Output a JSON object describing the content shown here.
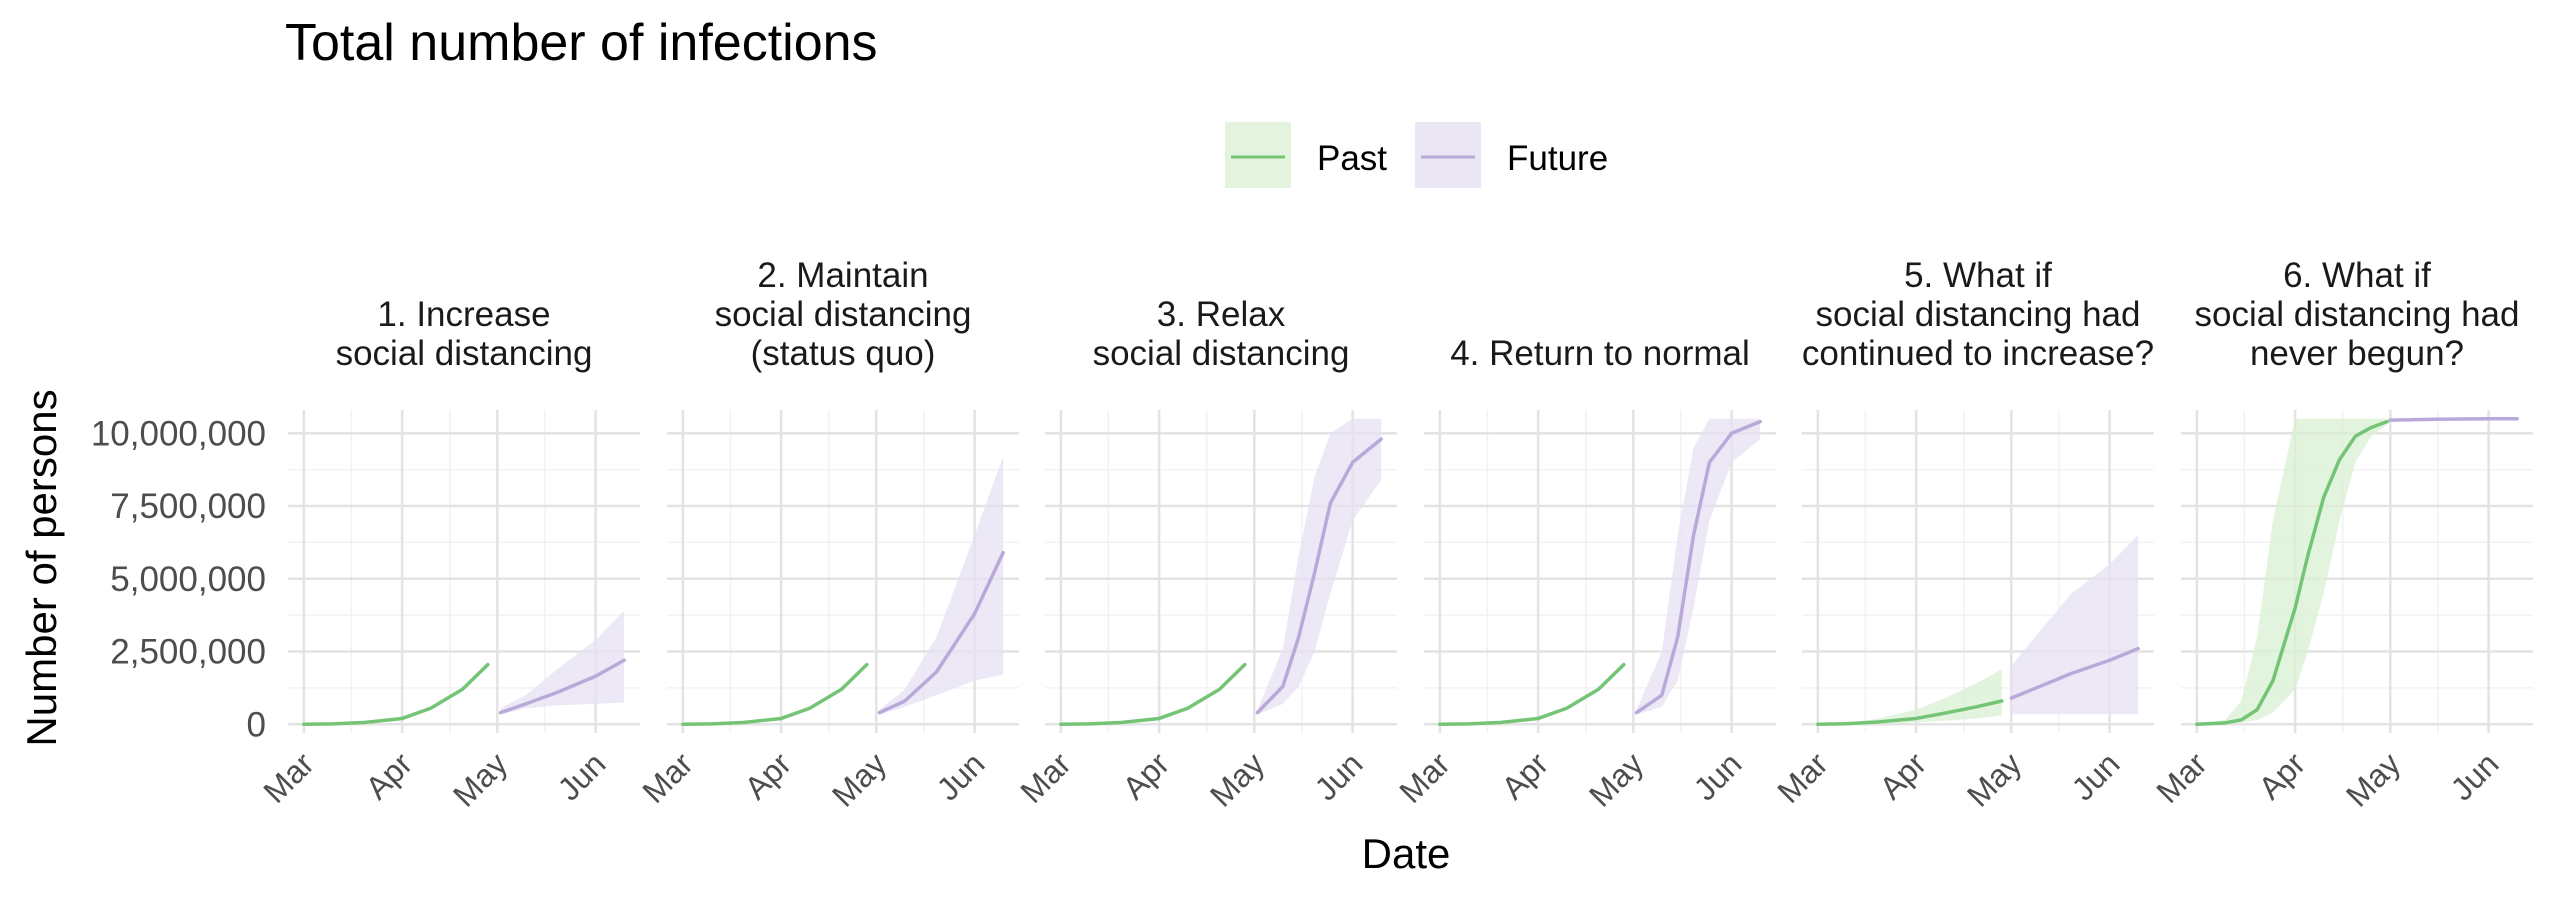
{
  "chart_data": {
    "type": "line",
    "title": "Total number of infections",
    "xlabel": "Date",
    "ylabel": "Number of persons",
    "ylim": [
      -300000,
      10800000
    ],
    "xlim": [
      "2020-02-25",
      "2020-06-15"
    ],
    "y_ticks": [
      {
        "value": 0,
        "label": "0"
      },
      {
        "value": 2500000,
        "label": "2,500,000"
      },
      {
        "value": 5000000,
        "label": "5,000,000"
      },
      {
        "value": 7500000,
        "label": "7,500,000"
      },
      {
        "value": 10000000,
        "label": "10,000,000"
      }
    ],
    "x_ticks": [
      {
        "date": "2020-03-01",
        "label": "Mar"
      },
      {
        "date": "2020-04-01",
        "label": "Apr"
      },
      {
        "date": "2020-05-01",
        "label": "May"
      },
      {
        "date": "2020-06-01",
        "label": "Jun"
      }
    ],
    "grid": true,
    "legend": {
      "position": "top",
      "entries": [
        {
          "name": "Past",
          "color": "#74c476",
          "fill": "#d9f0d3"
        },
        {
          "name": "Future",
          "color": "#b8a9d9",
          "fill": "#e6e0f3"
        }
      ]
    },
    "panels": [
      {
        "strip": [
          "1. Increase",
          "social distancing"
        ],
        "past": {
          "x": [
            "2020-03-01",
            "2020-03-10",
            "2020-03-20",
            "2020-04-01",
            "2020-04-10",
            "2020-04-20",
            "2020-04-28"
          ],
          "y": [
            0,
            15000,
            60000,
            200000,
            550000,
            1200000,
            2050000
          ]
        },
        "future": {
          "x": [
            "2020-05-02",
            "2020-05-10",
            "2020-05-20",
            "2020-06-01",
            "2020-06-10"
          ],
          "y": [
            400000,
            700000,
            1100000,
            1650000,
            2200000
          ],
          "lower": [
            330000,
            550000,
            650000,
            700000,
            750000
          ],
          "upper": [
            550000,
            1000000,
            1900000,
            2900000,
            3900000
          ]
        }
      },
      {
        "strip": [
          "2. Maintain",
          "social distancing",
          "(status quo)"
        ],
        "past": {
          "x": [
            "2020-03-01",
            "2020-03-10",
            "2020-03-20",
            "2020-04-01",
            "2020-04-10",
            "2020-04-20",
            "2020-04-28"
          ],
          "y": [
            0,
            15000,
            60000,
            200000,
            550000,
            1200000,
            2050000
          ]
        },
        "future": {
          "x": [
            "2020-05-02",
            "2020-05-10",
            "2020-05-20",
            "2020-06-01",
            "2020-06-10"
          ],
          "y": [
            400000,
            800000,
            1800000,
            3800000,
            5900000
          ],
          "lower": [
            330000,
            600000,
            1000000,
            1500000,
            1700000
          ],
          "upper": [
            500000,
            1200000,
            3000000,
            6500000,
            9200000
          ]
        }
      },
      {
        "strip": [
          "3. Relax",
          "social distancing"
        ],
        "past": {
          "x": [
            "2020-03-01",
            "2020-03-10",
            "2020-03-20",
            "2020-04-01",
            "2020-04-10",
            "2020-04-20",
            "2020-04-28"
          ],
          "y": [
            0,
            15000,
            60000,
            200000,
            550000,
            1200000,
            2050000
          ]
        },
        "future": {
          "x": [
            "2020-05-02",
            "2020-05-10",
            "2020-05-15",
            "2020-05-20",
            "2020-05-25",
            "2020-06-01",
            "2020-06-10"
          ],
          "y": [
            400000,
            1300000,
            3000000,
            5200000,
            7600000,
            9000000,
            9800000
          ],
          "lower": [
            330000,
            700000,
            1300000,
            2500000,
            4500000,
            7000000,
            8400000
          ],
          "upper": [
            500000,
            2600000,
            5800000,
            8500000,
            10000000,
            10500000,
            10500000
          ]
        }
      },
      {
        "strip": [
          "4. Return to normal"
        ],
        "past": {
          "x": [
            "2020-03-01",
            "2020-03-10",
            "2020-03-20",
            "2020-04-01",
            "2020-04-10",
            "2020-04-20",
            "2020-04-28"
          ],
          "y": [
            0,
            15000,
            60000,
            200000,
            550000,
            1200000,
            2050000
          ]
        },
        "future": {
          "x": [
            "2020-05-02",
            "2020-05-10",
            "2020-05-15",
            "2020-05-20",
            "2020-05-25",
            "2020-06-01",
            "2020-06-10"
          ],
          "y": [
            400000,
            1000000,
            3000000,
            6500000,
            9000000,
            10000000,
            10400000
          ],
          "lower": [
            330000,
            600000,
            1500000,
            4000000,
            7000000,
            9000000,
            9800000
          ],
          "upper": [
            500000,
            2500000,
            6500000,
            9500000,
            10500000,
            10500000,
            10500000
          ]
        }
      },
      {
        "strip": [
          "5. What if",
          "social distancing had",
          "continued to increase?"
        ],
        "past": {
          "x": [
            "2020-03-01",
            "2020-03-10",
            "2020-03-20",
            "2020-04-01",
            "2020-04-10",
            "2020-04-20",
            "2020-04-28"
          ],
          "y": [
            0,
            20000,
            80000,
            200000,
            380000,
            600000,
            800000
          ],
          "lower": [
            0,
            5000,
            20000,
            60000,
            120000,
            200000,
            300000
          ],
          "upper": [
            0,
            40000,
            200000,
            500000,
            900000,
            1400000,
            1900000
          ]
        },
        "future": {
          "x": [
            "2020-05-01",
            "2020-05-10",
            "2020-05-20",
            "2020-06-01",
            "2020-06-10"
          ],
          "y": [
            900000,
            1300000,
            1750000,
            2200000,
            2600000
          ],
          "lower": [
            350000,
            350000,
            350000,
            350000,
            350000
          ],
          "upper": [
            2000000,
            3200000,
            4500000,
            5500000,
            6500000
          ]
        }
      },
      {
        "strip": [
          "6. What if",
          "social distancing had",
          "never begun?"
        ],
        "past": {
          "x": [
            "2020-03-01",
            "2020-03-10",
            "2020-03-15",
            "2020-03-20",
            "2020-03-25",
            "2020-04-01",
            "2020-04-05",
            "2020-04-10",
            "2020-04-15",
            "2020-04-20",
            "2020-04-25",
            "2020-04-30"
          ],
          "y": [
            0,
            50000,
            150000,
            500000,
            1500000,
            4000000,
            5800000,
            7800000,
            9100000,
            9900000,
            10200000,
            10400000
          ],
          "lower": [
            0,
            20000,
            60000,
            150000,
            400000,
            1200000,
            2500000,
            4500000,
            7000000,
            9000000,
            9900000,
            10300000
          ],
          "upper": [
            0,
            150000,
            800000,
            3000000,
            7000000,
            10500000,
            10500000,
            10500000,
            10500000,
            10500000,
            10500000,
            10500000
          ]
        },
        "future": {
          "x": [
            "2020-05-01",
            "2020-05-15",
            "2020-06-01",
            "2020-06-10"
          ],
          "y": [
            10450000,
            10480000,
            10500000,
            10500000
          ]
        }
      }
    ]
  }
}
